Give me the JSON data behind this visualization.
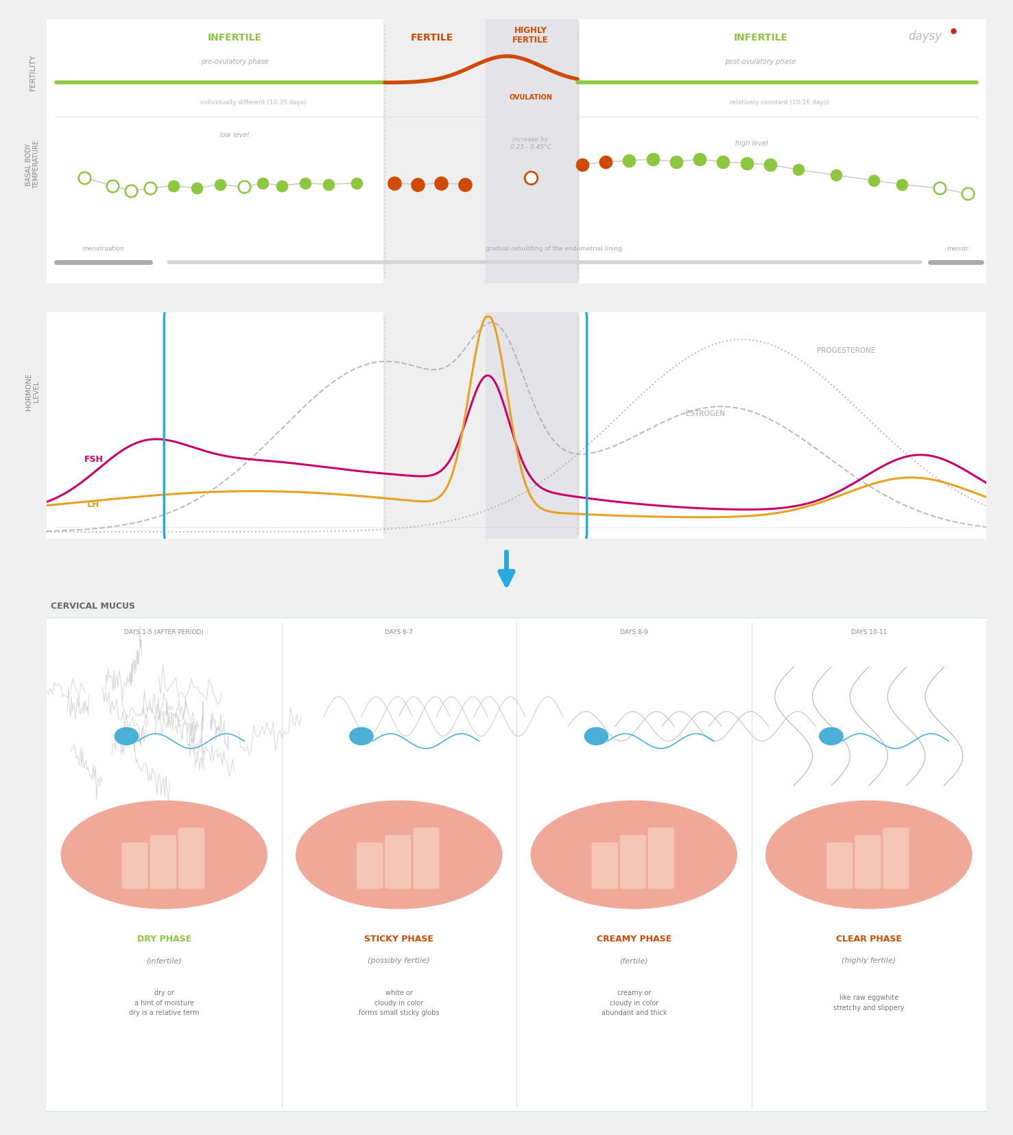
{
  "bg_color": "#f0f0f0",
  "panel_bg": "#ffffff",
  "green_color": "#8dc63f",
  "red_color": "#d04a02",
  "orange_color": "#e8a020",
  "magenta_color": "#c8006a",
  "blue_color": "#29aae1",
  "gray_color": "#aaaaaa",
  "dark_gray": "#777777",
  "light_gray": "#cccccc",
  "phases": {
    "infertile1": "INFERTILE",
    "fertile": "FERTILE",
    "highly_fertile": "HIGHLY\nFERTILE",
    "infertile2": "INFERTILE"
  },
  "subphases": {
    "pre": "pre-ovulatory phase",
    "post": "post-ovulatory phase"
  },
  "mucus_phases": [
    {
      "days": "DAYS 1-5 (AFTER PERIOD)",
      "name": "DRY PHASE",
      "sub": "(infertile)",
      "desc": "dry or\na hint of moisture\ndry is a relative term",
      "name_color": "#8dc63f",
      "sub_color": "#888888"
    },
    {
      "days": "DAYS 6-7",
      "name": "STICKY PHASE",
      "sub": "(possibly fertile)",
      "desc": "white or\ncloudy in color\nforms small sticky globs",
      "name_color": "#d04a02",
      "sub_color": "#888888"
    },
    {
      "days": "DAYS 8-9",
      "name": "CREAMY PHASE",
      "sub": "(fertile)",
      "desc": "creamy or\ncloudy in color\nabundant and thick",
      "name_color": "#d04a02",
      "sub_color": "#888888"
    },
    {
      "days": "DAYS 10-11",
      "name": "CLEAR PHASE",
      "sub": "(highly fertile)",
      "desc": "like raw eggwhite\nstretchy and slippery",
      "name_color": "#d04a02",
      "sub_color": "#888888"
    }
  ]
}
